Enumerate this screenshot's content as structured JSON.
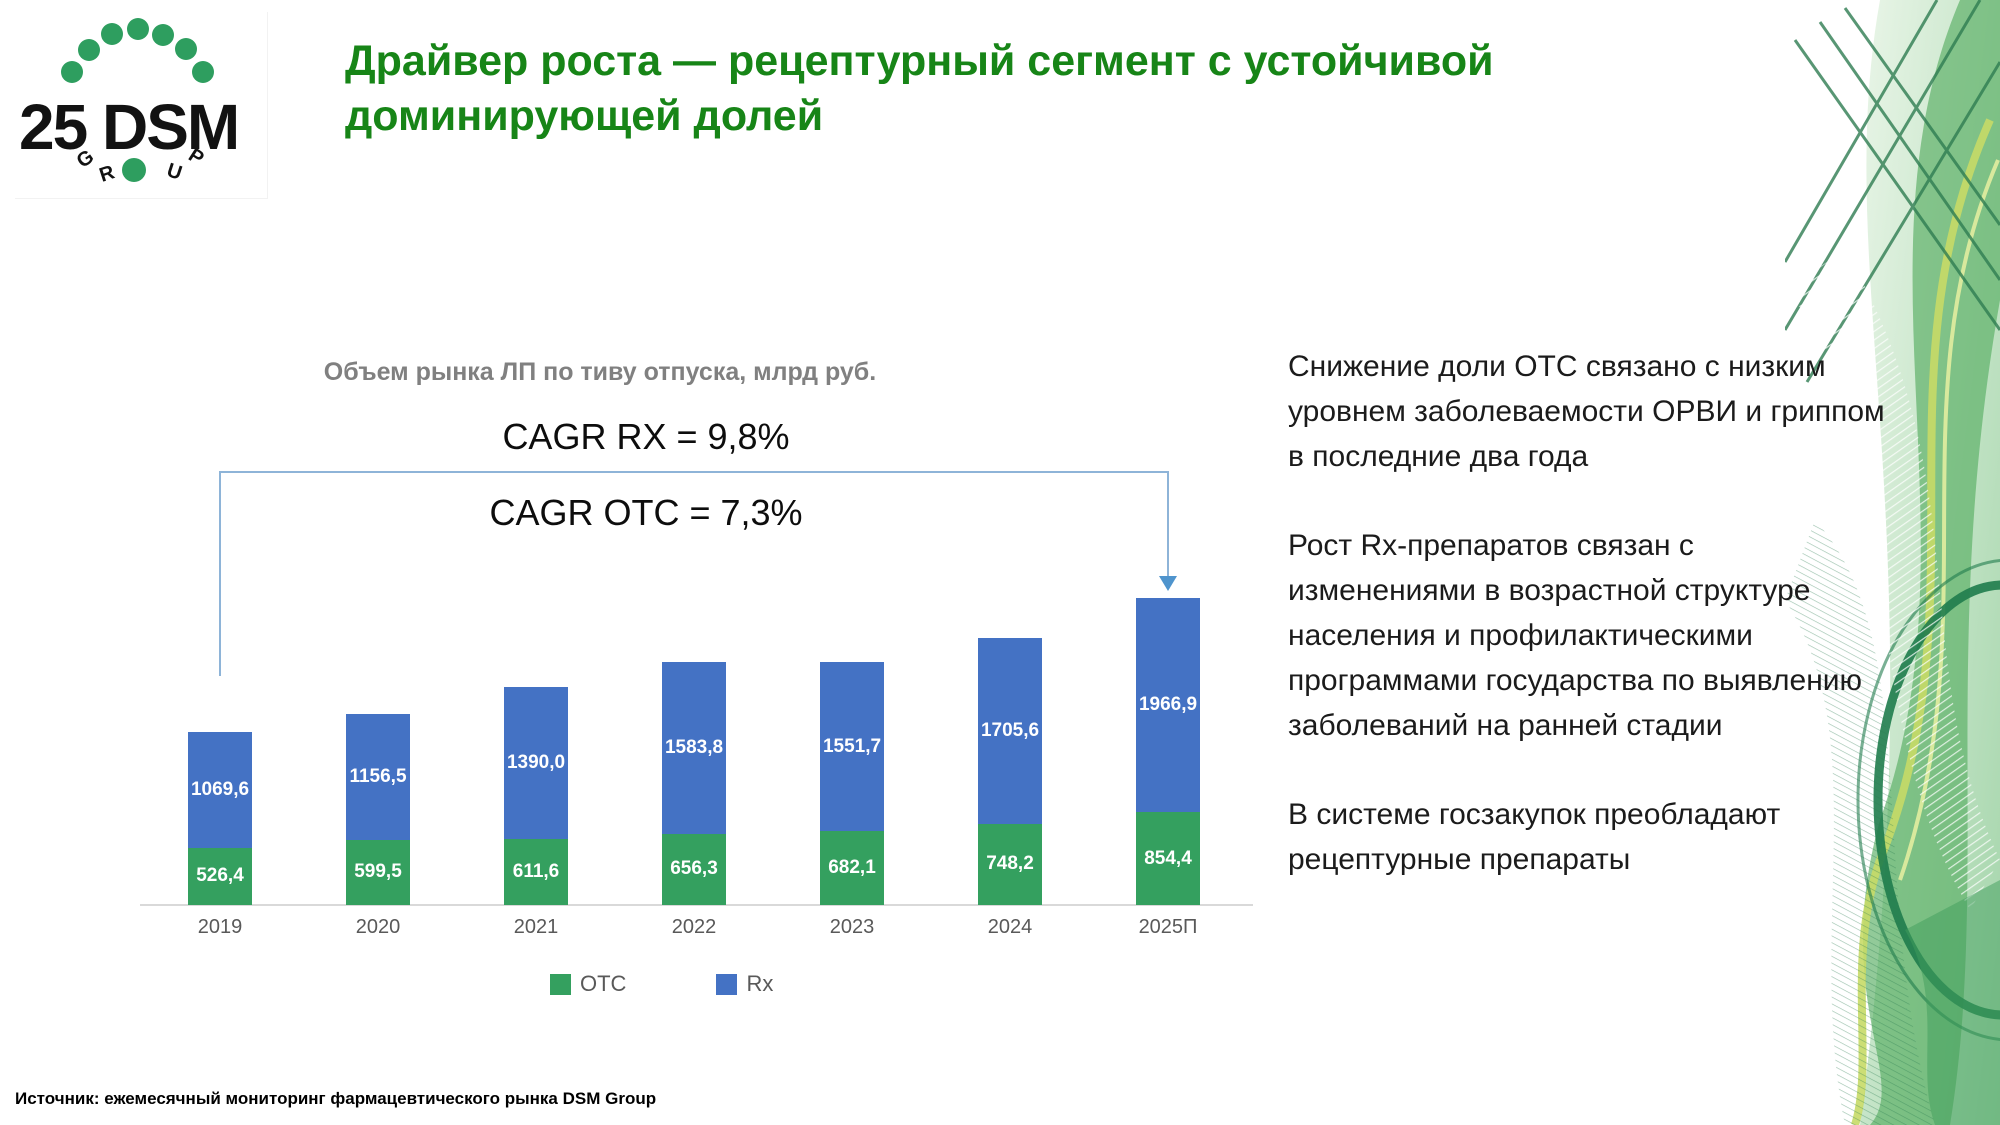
{
  "slide": {
    "title": "Драйвер роста — рецептурный сегмент с устойчивой доминирующей долей",
    "source": "Источник: ежемесячный мониторинг фармацевтического рынка DSM Group"
  },
  "logo": {
    "anniversary_number": "25",
    "company": "DSM",
    "group_letters": [
      "G",
      "R",
      "U",
      "P"
    ],
    "dot_color": "#2e9e5f",
    "text_color": "#121212"
  },
  "chart_data": {
    "type": "bar",
    "stacked": true,
    "title": "Объем рынка ЛП по тиву отпуска, млрд руб.",
    "categories": [
      "2019",
      "2020",
      "2021",
      "2022",
      "2023",
      "2024",
      "2025П"
    ],
    "series": [
      {
        "name": "OTC",
        "color": "#34a05f",
        "values": [
          526.4,
          599.5,
          611.6,
          656.3,
          682.1,
          748.2,
          854.4
        ],
        "labels": [
          "526,4",
          "599,5",
          "611,6",
          "656,3",
          "682,1",
          "748,2",
          "854,4"
        ]
      },
      {
        "name": "Rx",
        "color": "#4472c4",
        "values": [
          1069.6,
          1156.5,
          1390.0,
          1583.8,
          1551.7,
          1705.6,
          1966.9
        ],
        "labels": [
          "1069,6",
          "1156,5",
          "1390,0",
          "1583,8",
          "1551,7",
          "1705,6",
          "1966,9"
        ]
      }
    ],
    "annotations": [
      {
        "name": "cagr-rx",
        "text": "CAGR RX = 9,8%"
      },
      {
        "name": "cagr-otc",
        "text": "CAGR OTC = 7,3%"
      }
    ],
    "legend": {
      "position": "bottom",
      "entries": [
        "OTC",
        "Rx"
      ]
    },
    "ylim": [
      0,
      2900
    ],
    "grid": false,
    "value_label_color": "#ffffff",
    "category_label_color": "#595959",
    "axis_line_color": "#d9d9d9",
    "bracket_color": "#8eb4d8",
    "arrow_color": "#4f94cd",
    "title_color": "#808080"
  },
  "right_panel": {
    "paragraphs": [
      "Снижение доли OTC связано с низким уровнем заболеваемости ОРВИ и гриппом в последние два года",
      "Рост Rx-препаратов связан с изменениями в возрастной структуре населения и профилактическими программами государства по выявлению заболеваний на ранней стадии",
      "В системе госзакупок преобладают рецептурные препараты"
    ]
  },
  "colors": {
    "title_green": "#178517",
    "deco_dark_green": "#1f7c4c",
    "deco_mid_green": "#58ae62",
    "deco_light_green": "#bfe3bd",
    "deco_yellow_green": "#c6da67"
  }
}
